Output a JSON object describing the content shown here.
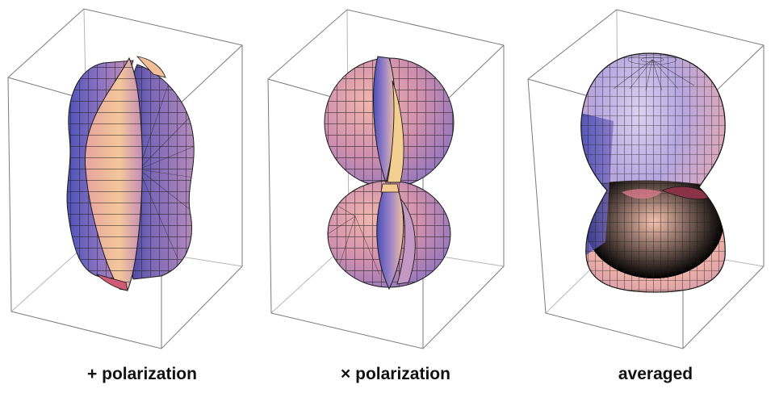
{
  "panels": [
    {
      "id": "plus",
      "caption": "+ polarization"
    },
    {
      "id": "cross",
      "caption": "× polarization"
    },
    {
      "id": "averaged",
      "caption": "averaged"
    }
  ],
  "colors": {
    "box_edge": "#7a7a7a",
    "mesh_line": "#1a1a1a",
    "surface_blue": "#5b5ec4",
    "surface_violet": "#a27fc4",
    "surface_pink": "#e6a8a6",
    "surface_peach": "#f5c49a",
    "surface_dark": "#3a2f7a"
  }
}
